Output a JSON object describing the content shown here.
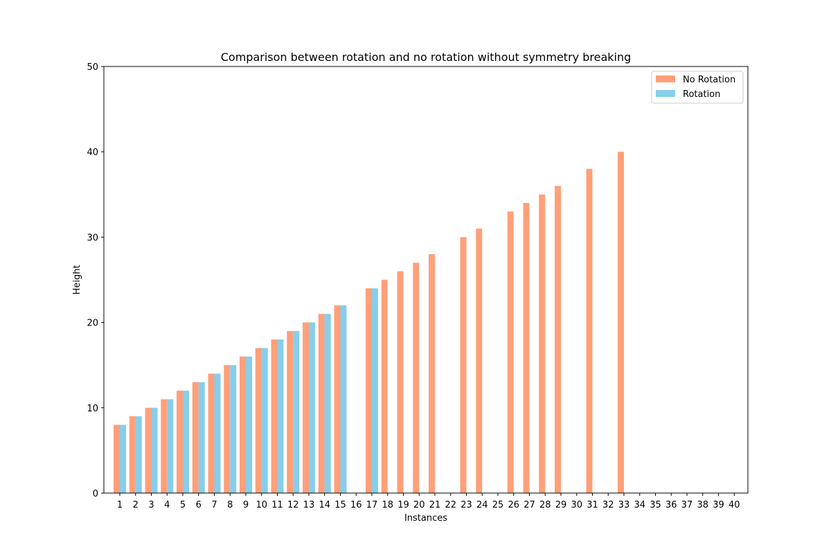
{
  "chart_data": {
    "type": "bar",
    "title": "Comparison between rotation and no rotation without symmetry breaking",
    "xlabel": "Instances",
    "ylabel": "Height",
    "ylim": [
      0,
      50
    ],
    "yticks": [
      0,
      10,
      20,
      30,
      40,
      50
    ],
    "grid": false,
    "legend_position": "top-right",
    "categories": [
      "1",
      "2",
      "3",
      "4",
      "5",
      "6",
      "7",
      "8",
      "9",
      "10",
      "11",
      "12",
      "13",
      "14",
      "15",
      "16",
      "17",
      "18",
      "19",
      "20",
      "21",
      "22",
      "23",
      "24",
      "25",
      "26",
      "27",
      "28",
      "29",
      "30",
      "31",
      "32",
      "33",
      "34",
      "35",
      "36",
      "37",
      "38",
      "39",
      "40"
    ],
    "series": [
      {
        "name": "No Rotation",
        "color": "#FFA07A",
        "values": [
          8,
          9,
          10,
          11,
          12,
          13,
          14,
          15,
          16,
          17,
          18,
          19,
          20,
          21,
          22,
          null,
          24,
          25,
          26,
          27,
          28,
          null,
          30,
          31,
          null,
          33,
          34,
          35,
          36,
          null,
          38,
          null,
          40,
          null,
          null,
          null,
          null,
          null,
          null,
          null
        ]
      },
      {
        "name": "Rotation",
        "color": "#87CEEB",
        "values": [
          8,
          9,
          10,
          11,
          12,
          13,
          14,
          15,
          16,
          17,
          18,
          19,
          20,
          21,
          22,
          null,
          24,
          null,
          null,
          null,
          null,
          null,
          null,
          null,
          null,
          null,
          null,
          null,
          null,
          null,
          null,
          null,
          null,
          null,
          null,
          null,
          null,
          null,
          null,
          null
        ]
      }
    ]
  }
}
